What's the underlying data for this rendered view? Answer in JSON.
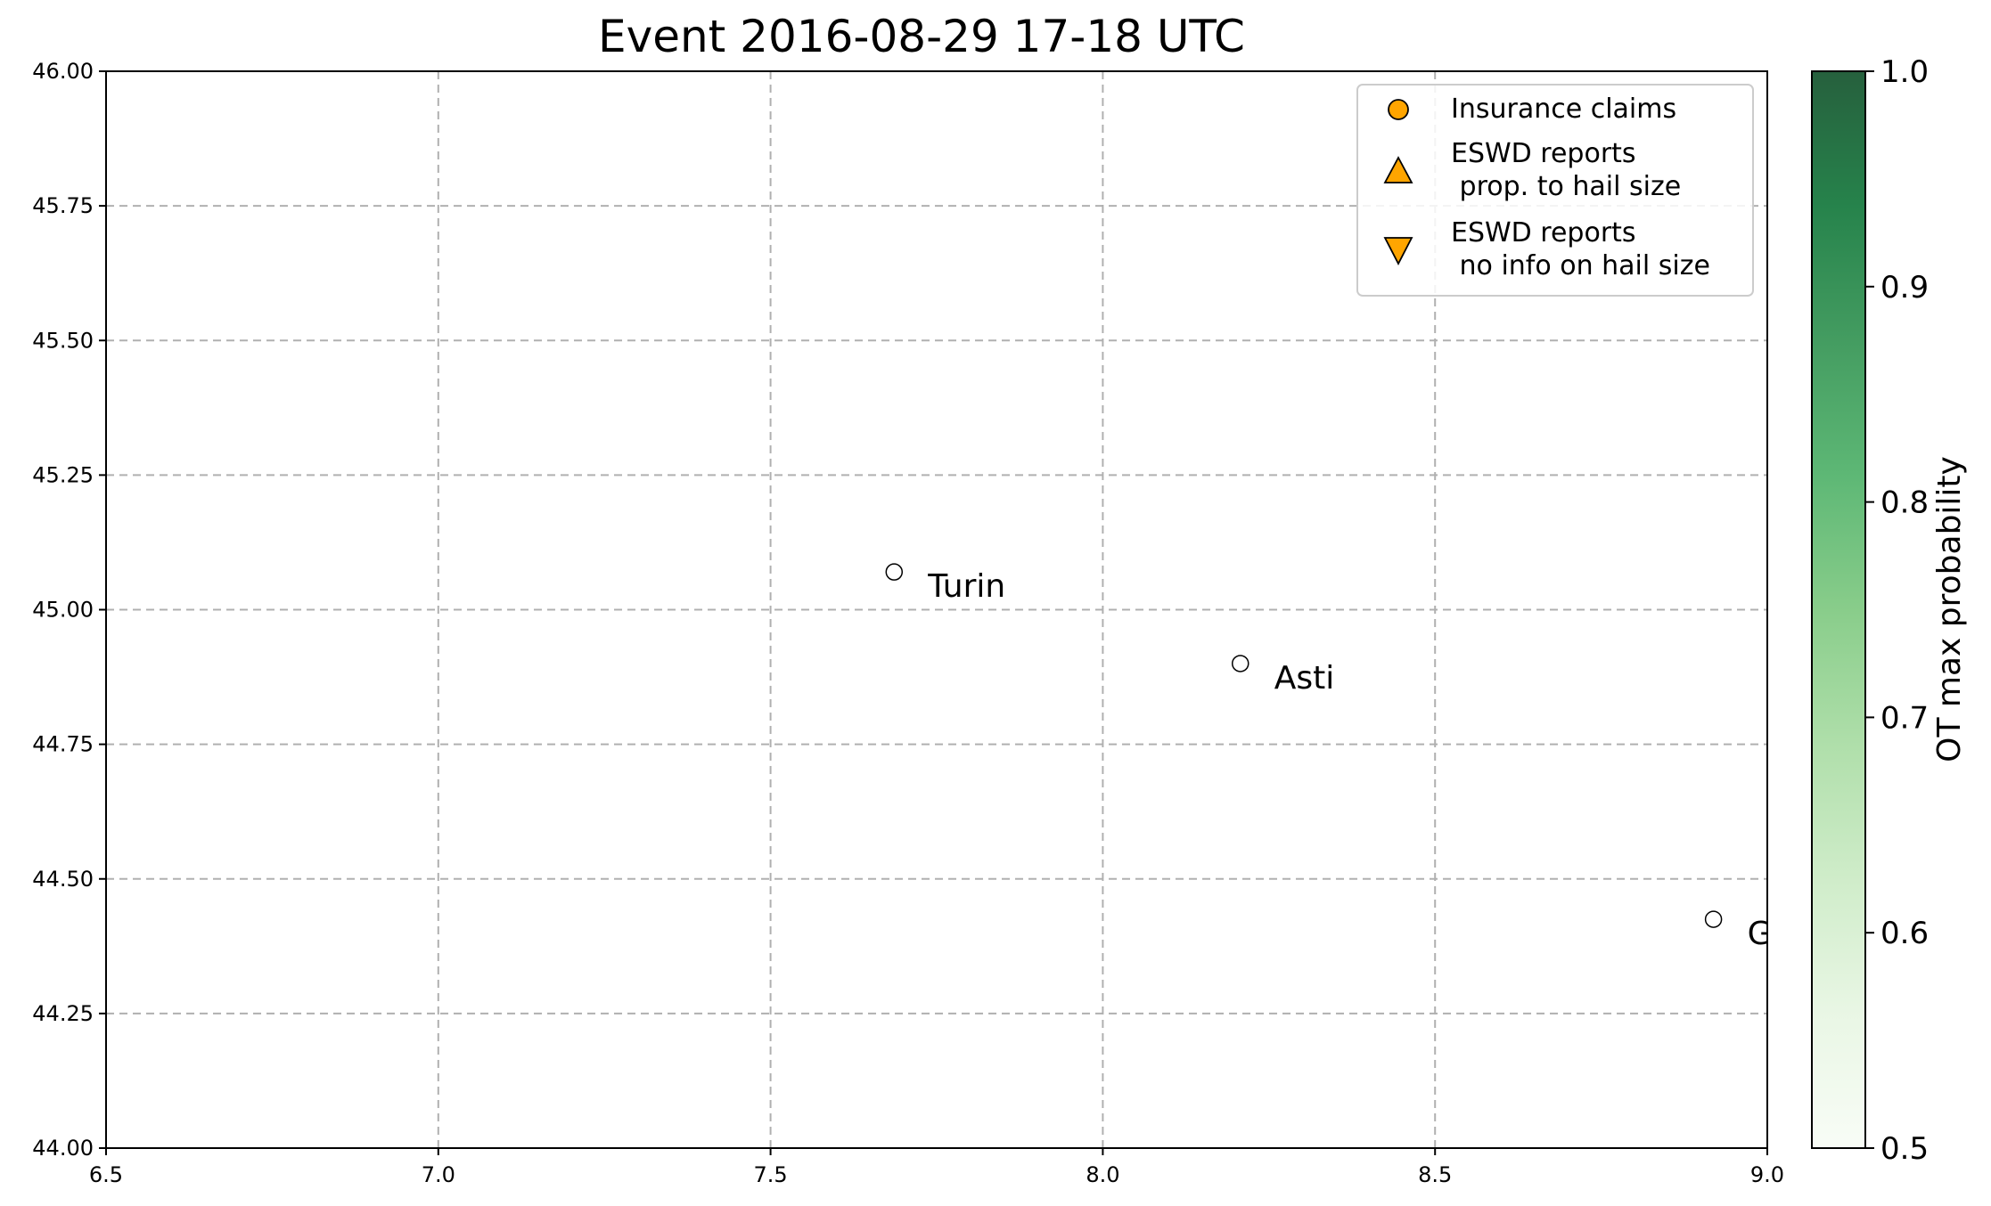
{
  "chart_data": {
    "type": "scatter",
    "title": "Event 2016-08-29 17-18 UTC",
    "xlim": [
      6.5,
      9.0
    ],
    "ylim": [
      44.0,
      46.0
    ],
    "xticks": [
      6.5,
      7.0,
      7.5,
      8.0,
      8.5,
      9.0
    ],
    "xtick_labels": [
      "6.5",
      "7.0",
      "7.5",
      "8.0",
      "8.5",
      "9.0"
    ],
    "yticks": [
      44.0,
      44.25,
      44.5,
      44.75,
      45.0,
      45.25,
      45.5,
      45.75,
      46.0
    ],
    "ytick_labels": [
      "44.00",
      "44.25",
      "44.50",
      "44.75",
      "45.00",
      "45.25",
      "45.50",
      "45.75",
      "46.00"
    ],
    "grid": true,
    "cities": [
      {
        "name": "Turin",
        "x": 7.686,
        "y": 45.07,
        "label": "Turin"
      },
      {
        "name": "Asti",
        "x": 8.207,
        "y": 44.9,
        "label": "Asti"
      },
      {
        "name": "Genoa",
        "x": 8.919,
        "y": 44.425,
        "label": "Gen"
      }
    ],
    "legend": {
      "position": "top-right",
      "entries": [
        {
          "marker": "circle",
          "color": "#ffa500",
          "label_lines": [
            "Insurance claims"
          ]
        },
        {
          "marker": "triangle-up",
          "color": "#ffa500",
          "label_lines": [
            "ESWD reports",
            " prop. to hail size"
          ]
        },
        {
          "marker": "triangle-down",
          "color": "#ffa500",
          "label_lines": [
            "ESWD reports",
            " no info on hail size"
          ]
        }
      ]
    },
    "colorbar": {
      "label": "OT max probability",
      "range": [
        0.5,
        1.0
      ],
      "ticks": [
        0.5,
        0.6,
        0.7,
        0.8,
        0.9,
        1.0
      ],
      "tick_labels": [
        "0.5",
        "0.6",
        "0.7",
        "0.8",
        "0.9",
        "1.0"
      ],
      "colormap": "Greens",
      "color_low": "#f7fcf5",
      "color_high": "#00441b"
    }
  }
}
